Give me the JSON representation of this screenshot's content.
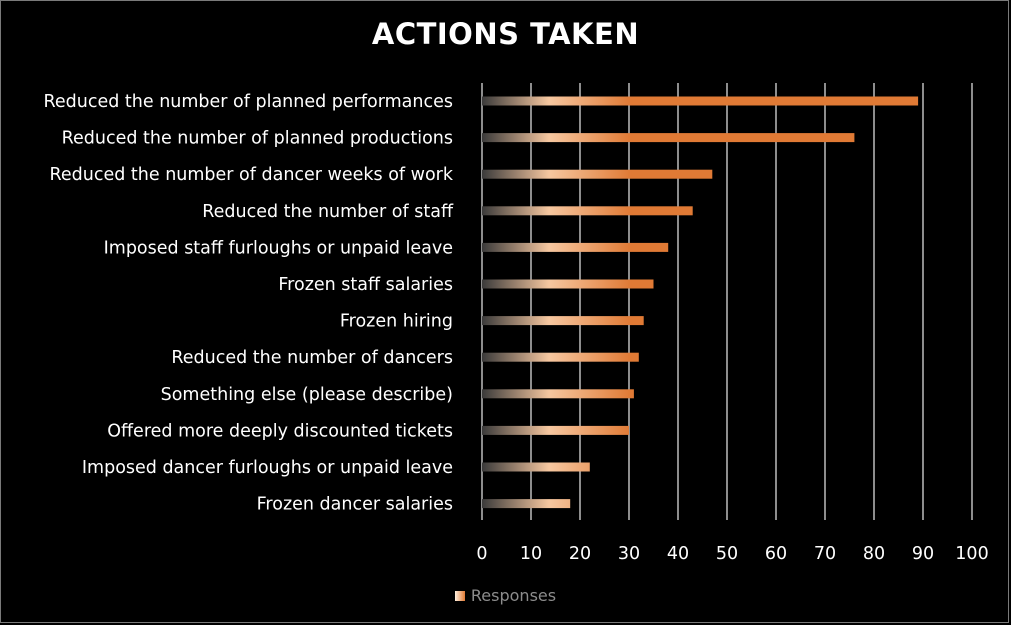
{
  "chart_data": {
    "type": "bar",
    "orientation": "horizontal",
    "title": "ACTIONS TAKEN",
    "categories": [
      "Reduced the number of planned performances",
      "Reduced the number of planned productions",
      "Reduced the number of dancer weeks of work",
      "Reduced the number of staff",
      "Imposed staff furloughs or unpaid leave",
      "Frozen staff salaries",
      "Frozen hiring",
      "Reduced the number of dancers",
      "Something else (please describe)",
      "Offered more deeply discounted tickets",
      "Imposed dancer furloughs or unpaid leave",
      "Frozen dancer salaries"
    ],
    "series": [
      {
        "name": "Responses",
        "values": [
          89,
          76,
          47,
          43,
          38,
          35,
          33,
          32,
          31,
          30,
          22,
          18
        ]
      }
    ],
    "xlim": [
      0,
      100
    ],
    "xticks": [
      "0",
      "10",
      "20",
      "30",
      "40",
      "50",
      "60",
      "70",
      "80",
      "90",
      "100"
    ],
    "grid": "vertical",
    "legend_position": "bottom",
    "colors": {
      "background": "#000000",
      "bar_start": "#3a3a3a",
      "bar_light": "#f6c7a0",
      "bar_end": "#e07a35",
      "grid": "#d9d9d9",
      "text": "#ffffff",
      "legend_text": "#8c8c8c"
    }
  }
}
